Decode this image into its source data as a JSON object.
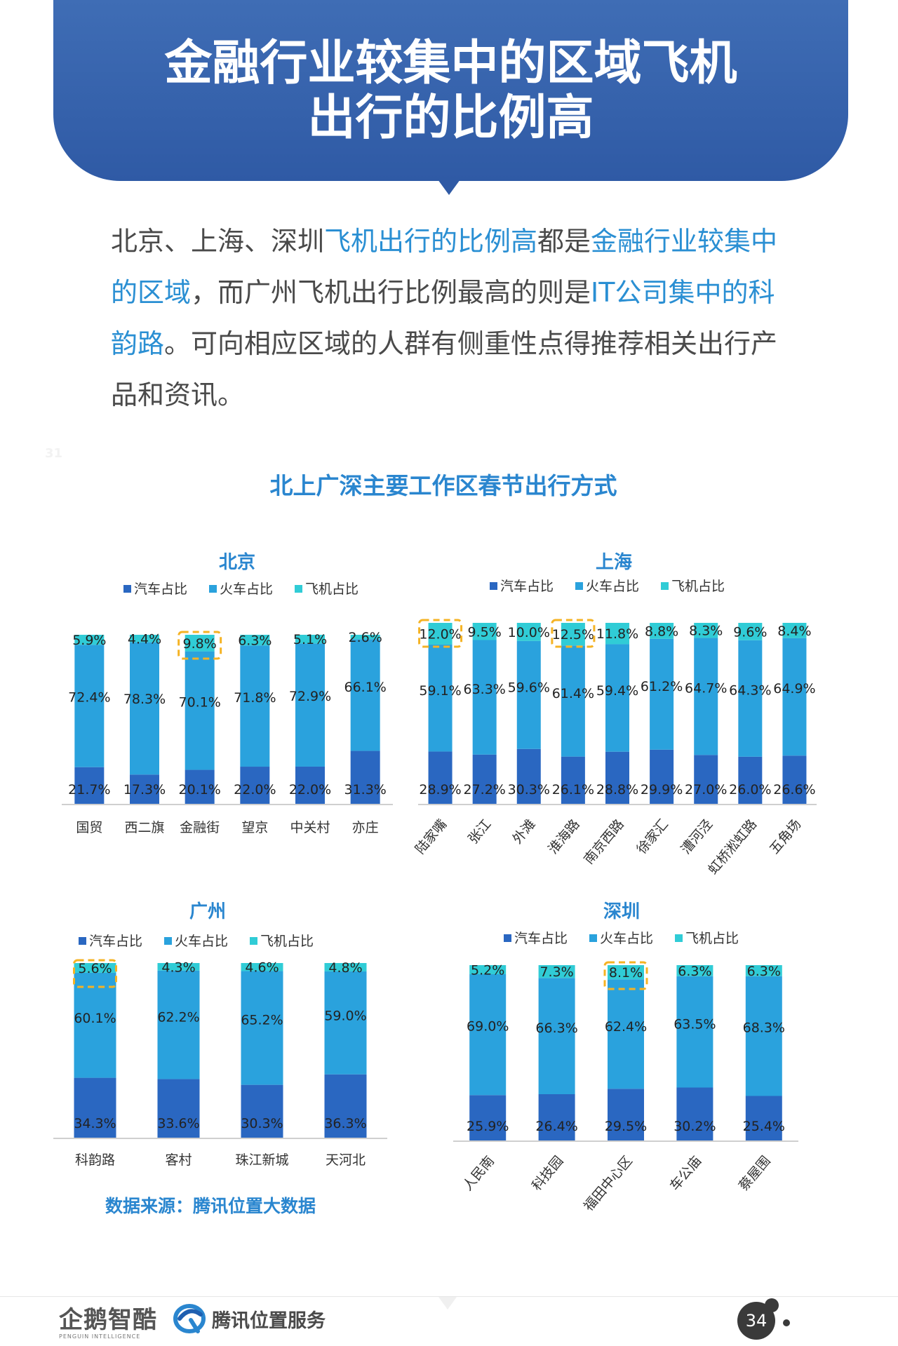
{
  "header": {
    "title_line1": "金融行业较集中的区域飞机",
    "title_line2": "出行的比例高"
  },
  "intro": {
    "segments": [
      {
        "text": "北京、上海、深圳",
        "hl": false
      },
      {
        "text": "飞机出行的比例高",
        "hl": true
      },
      {
        "text": "都是",
        "hl": false
      },
      {
        "text": "金融行业较集中的区域",
        "hl": true
      },
      {
        "text": "，而广州飞机出行比例最高的则是",
        "hl": false
      },
      {
        "text": "IT公司集中的科韵路",
        "hl": true
      },
      {
        "text": "。可向相应区域的人群有侧重性点得推荐相关出行产品和资讯。",
        "hl": false
      }
    ]
  },
  "page_small_number": "31",
  "main_title": "北上广深主要工作区春节出行方式",
  "legend": [
    "汽车占比",
    "火车占比",
    "飞机占比"
  ],
  "colors": {
    "car": "#2a67c1",
    "train": "#2aa2dd",
    "plane": "#30ccd6",
    "highlight": "#f5b324",
    "title_blue": "#2a86cf",
    "banner": "#3563ad"
  },
  "chart_data": [
    {
      "type": "bar",
      "stacked": true,
      "title": "北京",
      "categories": [
        "国贸",
        "西二旗",
        "金融街",
        "望京",
        "中关村",
        "亦庄"
      ],
      "series": [
        {
          "name": "汽车占比",
          "values": [
            21.7,
            17.3,
            20.1,
            22.0,
            22.0,
            31.3
          ]
        },
        {
          "name": "火车占比",
          "values": [
            72.4,
            78.3,
            70.1,
            71.8,
            72.9,
            66.1
          ]
        },
        {
          "name": "飞机占比",
          "values": [
            5.9,
            4.4,
            9.8,
            6.3,
            5.1,
            2.6
          ]
        }
      ],
      "labels": {
        "car": [
          "21.7%",
          "17.3%",
          "20.1%",
          "22.0%",
          "22.0%",
          "31.3%"
        ],
        "train": [
          "72.4%",
          "78.3%",
          "70.1%",
          "71.8%",
          "72.9%",
          "66.1%"
        ],
        "plane": [
          "5.9%",
          "4.4%",
          "9.8%",
          "6.3%",
          "5.1%",
          "2.6%"
        ]
      },
      "highlight": [
        2
      ],
      "rotated_labels": false
    },
    {
      "type": "bar",
      "stacked": true,
      "title": "上海",
      "categories": [
        "陆家嘴",
        "张江",
        "外滩",
        "淮海路",
        "南京西路",
        "徐家汇",
        "漕河泾",
        "虹桥淞虹路",
        "五角场"
      ],
      "series": [
        {
          "name": "汽车占比",
          "values": [
            28.9,
            27.2,
            30.3,
            26.1,
            28.8,
            29.9,
            27.0,
            26.0,
            26.6
          ]
        },
        {
          "name": "火车占比",
          "values": [
            59.1,
            63.3,
            59.6,
            61.4,
            59.4,
            61.2,
            64.7,
            64.3,
            64.9
          ]
        },
        {
          "name": "飞机占比",
          "values": [
            12.0,
            9.5,
            10.0,
            12.5,
            11.8,
            8.8,
            8.3,
            9.6,
            8.4
          ]
        }
      ],
      "labels": {
        "car": [
          "28.9%",
          "27.2%",
          "30.3%",
          "26.1%",
          "28.8%",
          "29.9%",
          "27.0%",
          "26.0%",
          "26.6%"
        ],
        "train": [
          "59.1%",
          "63.3%",
          "59.6%",
          "61.4%",
          "59.4%",
          "61.2%",
          "64.7%",
          "64.3%",
          "64.9%"
        ],
        "plane": [
          "12.0%",
          "9.5%",
          "10.0%",
          "12.5%",
          "11.8%",
          "8.8%",
          "8.3%",
          "9.6%",
          "8.4%"
        ]
      },
      "highlight": [
        0,
        3
      ],
      "rotated_labels": true
    },
    {
      "type": "bar",
      "stacked": true,
      "title": "广州",
      "categories": [
        "科韵路",
        "客村",
        "珠江新城",
        "天河北"
      ],
      "series": [
        {
          "name": "汽车占比",
          "values": [
            34.3,
            33.6,
            30.3,
            36.3
          ]
        },
        {
          "name": "火车占比",
          "values": [
            60.1,
            62.2,
            65.2,
            59.0
          ]
        },
        {
          "name": "飞机占比",
          "values": [
            5.6,
            4.3,
            4.6,
            4.8
          ]
        }
      ],
      "labels": {
        "car": [
          "34.3%",
          "33.6%",
          "30.3%",
          "36.3%"
        ],
        "train": [
          "60.1%",
          "62.2%",
          "65.2%",
          "59.0%"
        ],
        "plane": [
          "5.6%",
          "4.3%",
          "4.6%",
          "4.8%"
        ]
      },
      "highlight": [
        0
      ],
      "rotated_labels": false
    },
    {
      "type": "bar",
      "stacked": true,
      "title": "深圳",
      "categories": [
        "人民南",
        "科技园",
        "福田中心区",
        "车公庙",
        "蔡屋围"
      ],
      "series": [
        {
          "name": "汽车占比",
          "values": [
            25.9,
            26.4,
            29.5,
            30.2,
            25.4
          ]
        },
        {
          "name": "火车占比",
          "values": [
            69.0,
            66.3,
            62.4,
            63.5,
            68.3
          ]
        },
        {
          "name": "飞机占比",
          "values": [
            5.2,
            7.3,
            8.1,
            6.3,
            6.3
          ]
        }
      ],
      "labels": {
        "car": [
          "25.9%",
          "26.4%",
          "29.5%",
          "30.2%",
          "25.4%"
        ],
        "train": [
          "69.0%",
          "66.3%",
          "62.4%",
          "63.5%",
          "68.3%"
        ],
        "plane": [
          "5.2%",
          "7.3%",
          "8.1%",
          "6.3%",
          "6.3%"
        ]
      },
      "highlight": [
        2
      ],
      "rotated_labels": true
    }
  ],
  "source": "数据来源：腾讯位置大数据",
  "footer": {
    "logo1": "企鹅智酷",
    "logo1_sub": "PENGUIN INTELLIGENCE",
    "logo2": "腾讯位置服务",
    "page": "34"
  }
}
